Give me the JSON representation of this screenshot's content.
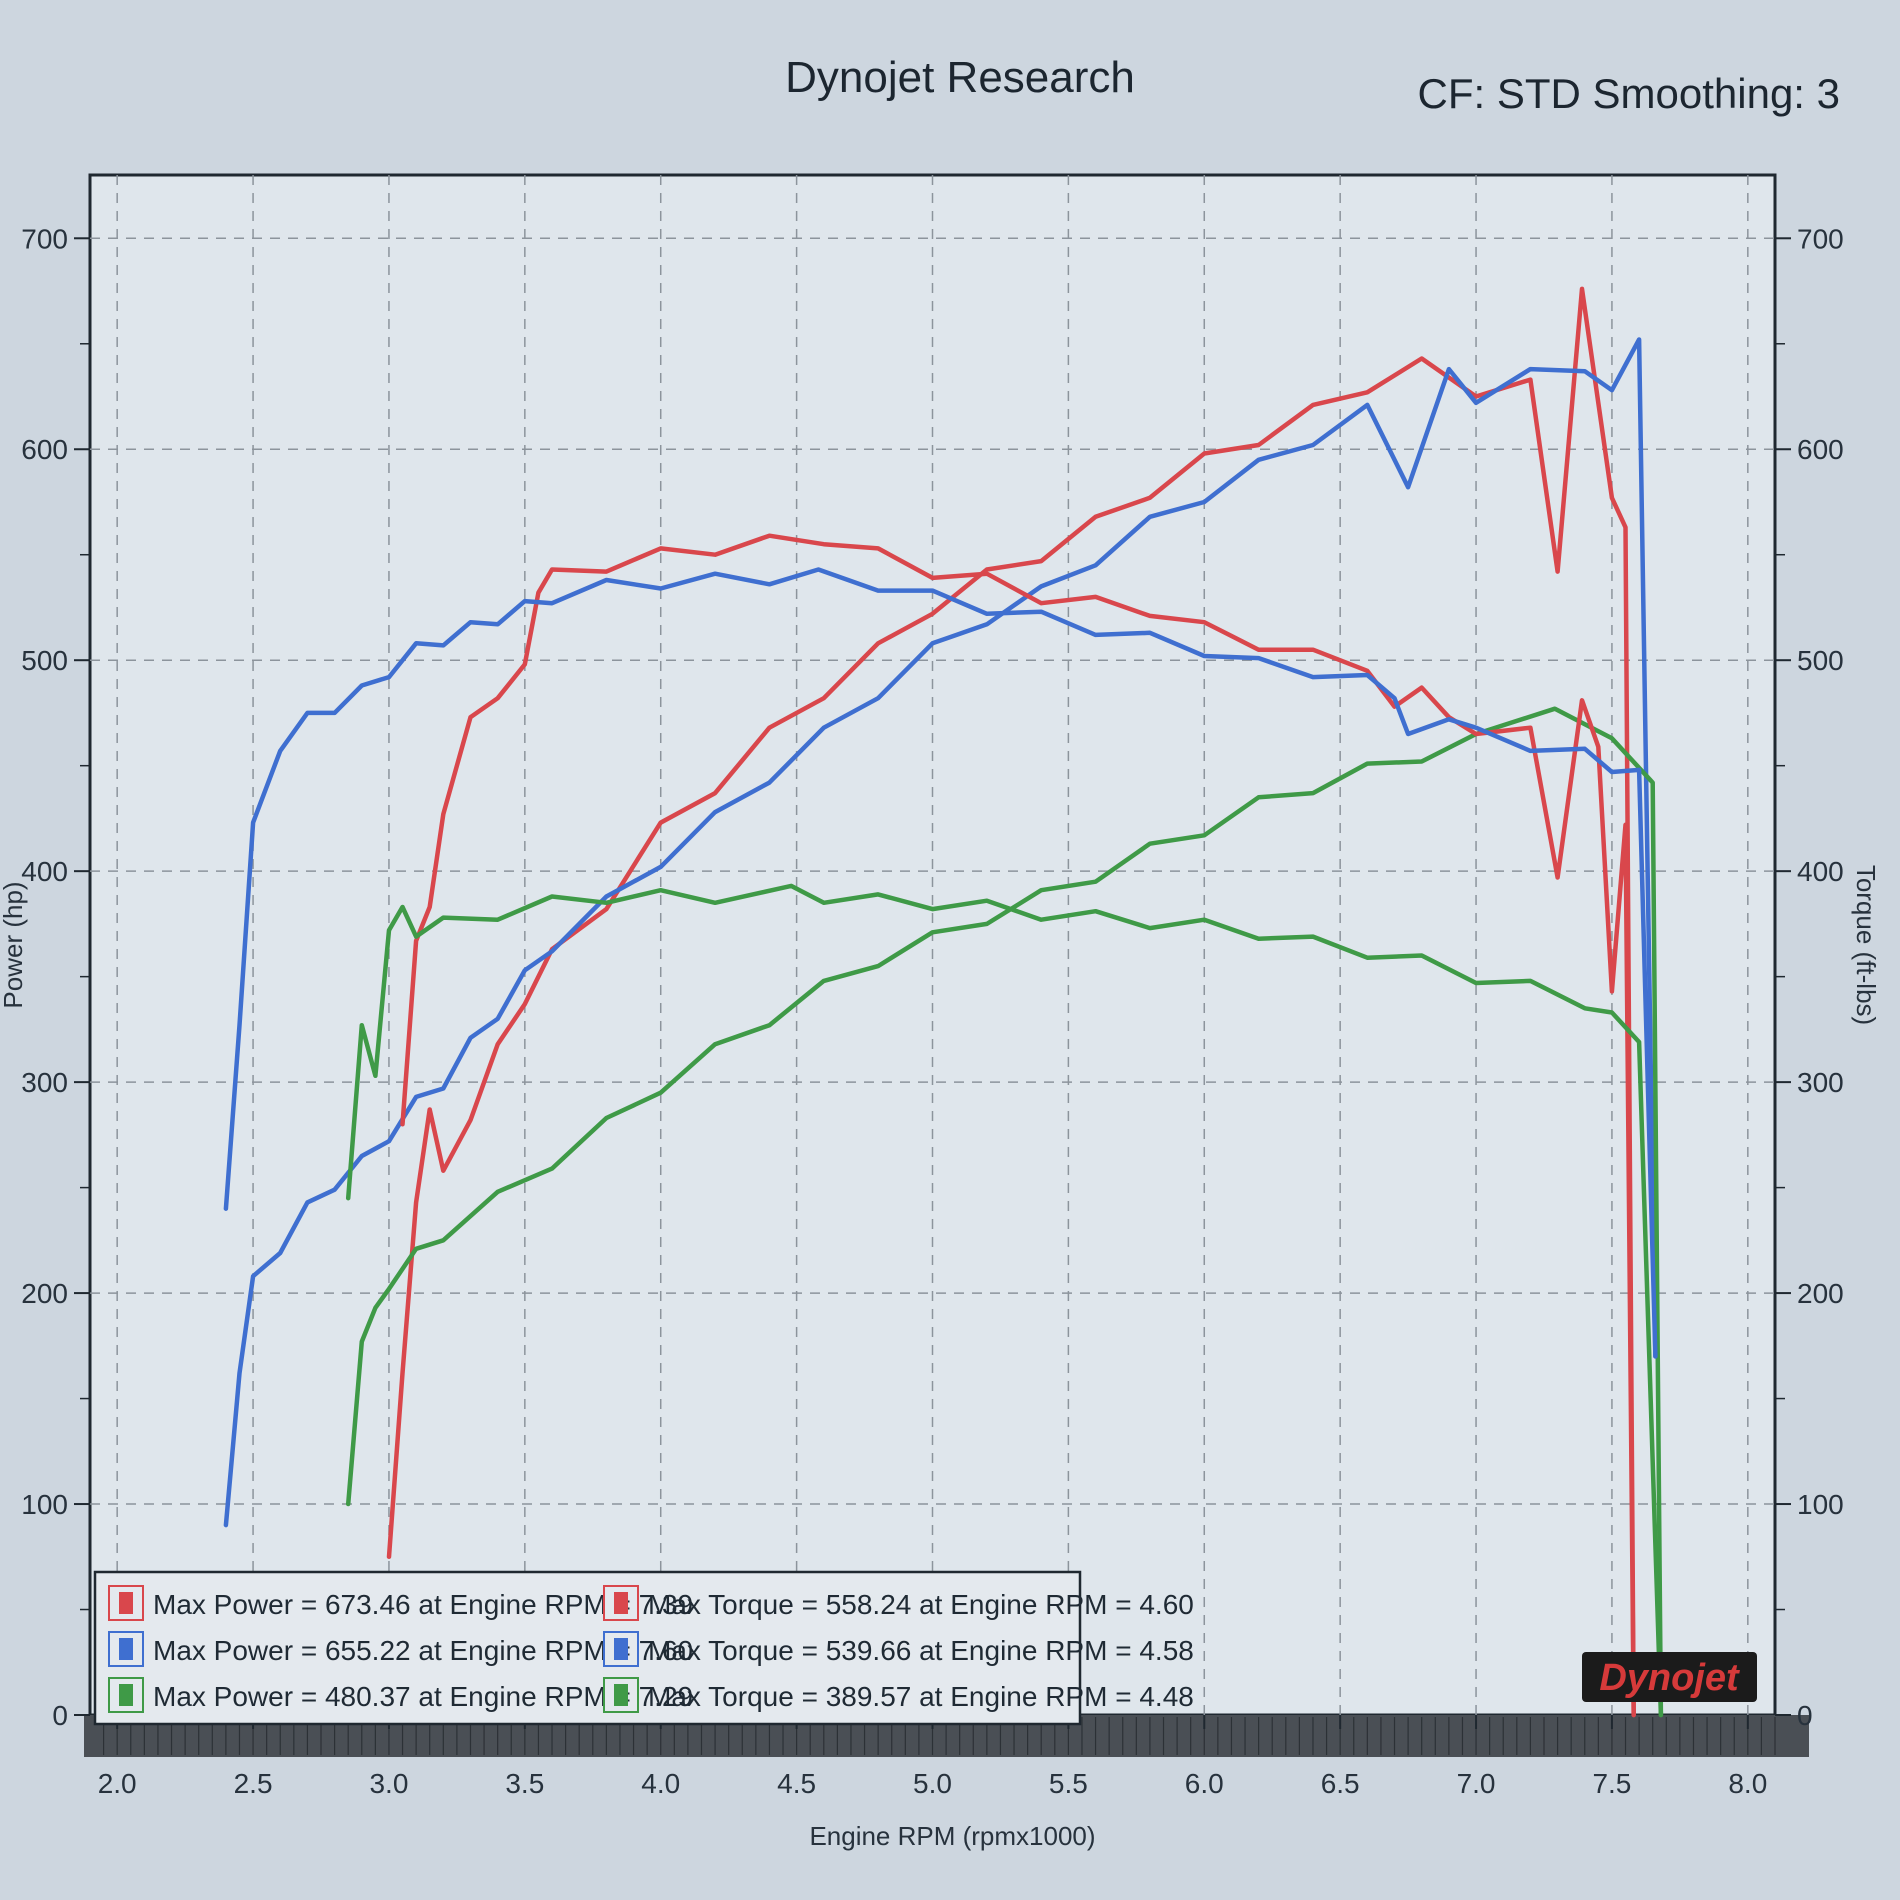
{
  "header": {
    "title": "Dynojet Research",
    "settings": "CF: STD Smoothing: 3"
  },
  "logo": {
    "text": "Dynojet"
  },
  "chart_data": {
    "type": "line",
    "xlabel": "Engine RPM (rpmx1000)",
    "ylabel_left": "Power (hp)",
    "ylabel_right": "Torque (ft-lbs)",
    "xlim": [
      1.9,
      8.1
    ],
    "ylim_left": [
      0,
      730
    ],
    "ylim_right": [
      0,
      730
    ],
    "x_ticks": [
      "2.0",
      "2.5",
      "3.0",
      "3.5",
      "4.0",
      "4.5",
      "5.0",
      "5.5",
      "6.0",
      "6.5",
      "7.0",
      "7.5",
      "8.0"
    ],
    "y_ticks_left": [
      "0",
      "100",
      "200",
      "300",
      "400",
      "500",
      "600",
      "700"
    ],
    "y_ticks_right": [
      "0",
      "100",
      "200",
      "300",
      "400",
      "500",
      "600",
      "700"
    ],
    "grid": true,
    "legend_position": "bottom-left",
    "colors": {
      "red": "#d9474c",
      "blue": "#3f6fd0",
      "green": "#3f9a47"
    },
    "legend": [
      {
        "text": "Max Power = 673.46 at Engine RPM = 7.39",
        "color": "red"
      },
      {
        "text": "Max Power = 655.22 at Engine RPM = 7.60",
        "color": "blue"
      },
      {
        "text": "Max Power = 480.37 at Engine RPM = 7.29",
        "color": "green"
      },
      {
        "text": "Max Torque = 558.24 at Engine RPM = 4.60",
        "color": "red"
      },
      {
        "text": "Max Torque = 539.66 at Engine RPM = 4.58",
        "color": "blue"
      },
      {
        "text": "Max Torque = 389.57 at Engine RPM = 4.48",
        "color": "green"
      }
    ],
    "series": [
      {
        "kind": "power",
        "color": "red",
        "x": [
          3.0,
          3.05,
          3.1,
          3.15,
          3.2,
          3.3,
          3.4,
          3.5,
          3.6,
          3.8,
          4.0,
          4.2,
          4.4,
          4.6,
          4.8,
          5.0,
          5.2,
          5.4,
          5.6,
          5.8,
          6.0,
          6.2,
          6.4,
          6.6,
          6.8,
          7.0,
          7.2,
          7.3,
          7.39,
          7.5,
          7.55,
          7.58
        ],
        "y": [
          75,
          165,
          240,
          290,
          255,
          285,
          315,
          340,
          360,
          385,
          420,
          440,
          465,
          485,
          505,
          525,
          540,
          550,
          565,
          580,
          595,
          605,
          618,
          630,
          640,
          628,
          630,
          545,
          673,
          580,
          560,
          0
        ]
      },
      {
        "kind": "power",
        "color": "blue",
        "x": [
          2.4,
          2.45,
          2.5,
          2.6,
          2.7,
          2.8,
          2.9,
          3.0,
          3.1,
          3.2,
          3.3,
          3.4,
          3.5,
          3.6,
          3.8,
          4.0,
          4.2,
          4.4,
          4.6,
          4.8,
          5.0,
          5.2,
          5.4,
          5.6,
          5.8,
          6.0,
          6.2,
          6.4,
          6.6,
          6.75,
          6.9,
          7.0,
          7.2,
          7.4,
          7.5,
          7.6,
          7.66
        ],
        "y": [
          90,
          165,
          205,
          222,
          240,
          252,
          262,
          275,
          290,
          300,
          318,
          333,
          350,
          365,
          385,
          405,
          425,
          445,
          465,
          485,
          505,
          520,
          532,
          548,
          565,
          578,
          592,
          605,
          618,
          585,
          635,
          625,
          635,
          640,
          625,
          655,
          170
        ]
      },
      {
        "kind": "power",
        "color": "green",
        "x": [
          2.85,
          2.9,
          2.95,
          3.0,
          3.1,
          3.2,
          3.4,
          3.6,
          3.8,
          4.0,
          4.2,
          4.4,
          4.6,
          4.8,
          5.0,
          5.2,
          5.4,
          5.6,
          5.8,
          6.0,
          6.2,
          6.4,
          6.6,
          6.8,
          7.0,
          7.29,
          7.5,
          7.65,
          7.68
        ],
        "y": [
          100,
          180,
          190,
          205,
          218,
          228,
          245,
          262,
          280,
          298,
          315,
          330,
          345,
          358,
          368,
          378,
          388,
          398,
          410,
          420,
          432,
          440,
          448,
          455,
          462,
          480,
          460,
          445,
          0
        ]
      },
      {
        "kind": "torque",
        "color": "red",
        "x": [
          3.05,
          3.1,
          3.15,
          3.2,
          3.3,
          3.4,
          3.5,
          3.55,
          3.6,
          3.8,
          4.0,
          4.2,
          4.4,
          4.6,
          4.8,
          5.0,
          5.2,
          5.4,
          5.6,
          5.8,
          6.0,
          6.2,
          6.4,
          6.6,
          6.7,
          6.8,
          6.9,
          7.0,
          7.2,
          7.3,
          7.39,
          7.45,
          7.5,
          7.55,
          7.58
        ],
        "y": [
          280,
          370,
          380,
          430,
          470,
          485,
          495,
          535,
          540,
          545,
          550,
          553,
          556,
          558,
          550,
          542,
          538,
          530,
          527,
          524,
          515,
          508,
          502,
          498,
          475,
          490,
          470,
          468,
          465,
          400,
          478,
          462,
          340,
          425,
          0
        ]
      },
      {
        "kind": "torque",
        "color": "blue",
        "x": [
          2.4,
          2.45,
          2.5,
          2.6,
          2.7,
          2.8,
          2.9,
          3.0,
          3.1,
          3.2,
          3.3,
          3.4,
          3.5,
          3.6,
          3.8,
          4.0,
          4.2,
          4.4,
          4.58,
          4.8,
          5.0,
          5.2,
          5.4,
          5.6,
          5.8,
          6.0,
          6.2,
          6.4,
          6.6,
          6.7,
          6.75,
          6.9,
          7.0,
          7.2,
          7.4,
          7.5,
          7.6,
          7.66
        ],
        "y": [
          240,
          330,
          420,
          460,
          472,
          478,
          485,
          495,
          505,
          510,
          515,
          520,
          525,
          530,
          535,
          537,
          538,
          539,
          540,
          536,
          530,
          525,
          520,
          515,
          510,
          505,
          498,
          495,
          490,
          485,
          462,
          475,
          465,
          460,
          455,
          450,
          445,
          170
        ]
      },
      {
        "kind": "torque",
        "color": "green",
        "x": [
          2.85,
          2.9,
          2.95,
          3.0,
          3.05,
          3.1,
          3.2,
          3.4,
          3.6,
          3.8,
          4.0,
          4.2,
          4.48,
          4.6,
          4.8,
          5.0,
          5.2,
          5.4,
          5.6,
          5.8,
          6.0,
          6.2,
          6.4,
          6.6,
          6.8,
          7.0,
          7.2,
          7.4,
          7.5,
          7.6,
          7.68
        ],
        "y": [
          245,
          330,
          300,
          375,
          380,
          372,
          375,
          380,
          385,
          388,
          388,
          388,
          390,
          388,
          386,
          385,
          383,
          380,
          378,
          376,
          374,
          371,
          366,
          362,
          357,
          350,
          345,
          338,
          330,
          322,
          0
        ]
      }
    ]
  }
}
